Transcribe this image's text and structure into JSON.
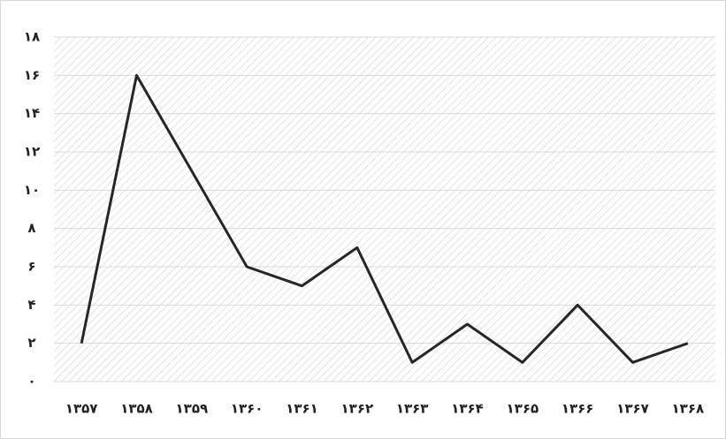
{
  "chart_data": {
    "type": "line",
    "categories": [
      "۱۳۵۷",
      "۱۳۵۸",
      "۱۳۵۹",
      "۱۳۶۰",
      "۱۳۶۱",
      "۱۳۶۲",
      "۱۳۶۳",
      "۱۳۶۴",
      "۱۳۶۵",
      "۱۳۶۶",
      "۱۳۶۷",
      "۱۳۶۸"
    ],
    "values": [
      2,
      16,
      11,
      6,
      5,
      7,
      1,
      3,
      1,
      4,
      1,
      2
    ],
    "color": "#262626",
    "ylim": [
      0,
      18
    ],
    "yticks": [
      {
        "value": 0,
        "label": "۰"
      },
      {
        "value": 2,
        "label": "۲"
      },
      {
        "value": 4,
        "label": "۴"
      },
      {
        "value": 6,
        "label": "۶"
      },
      {
        "value": 8,
        "label": "۸"
      },
      {
        "value": 10,
        "label": "۱۰"
      },
      {
        "value": 12,
        "label": "۱۲"
      },
      {
        "value": 14,
        "label": "۱۴"
      },
      {
        "value": 16,
        "label": "۱۶"
      },
      {
        "value": 18,
        "label": "۱۸"
      }
    ],
    "grid": true
  }
}
